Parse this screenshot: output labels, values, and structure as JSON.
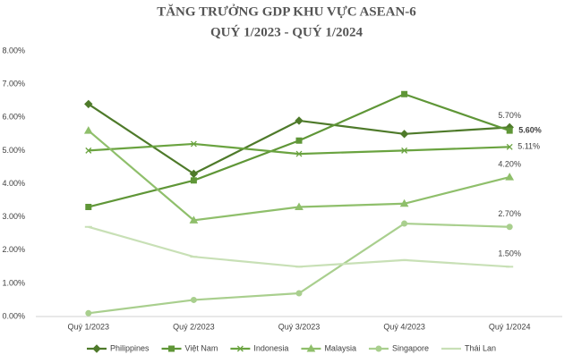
{
  "chart_data": {
    "type": "line",
    "title": "TĂNG TRƯỞNG GDP KHU VỰC ASEAN-6",
    "subtitle": "QUÝ 1/2023 - QUÝ 1/2024",
    "categories": [
      "Quý 1/2023",
      "Quý 2/2023",
      "Quý 3/2023",
      "Quý 4/2023",
      "Quý 1/2024"
    ],
    "ylim": [
      0,
      8
    ],
    "yticks": [
      {
        "value": 0,
        "label": "0.00%"
      },
      {
        "value": 1,
        "label": "1.00%"
      },
      {
        "value": 2,
        "label": "2.00%"
      },
      {
        "value": 3,
        "label": "3.00%"
      },
      {
        "value": 4,
        "label": "4.00%"
      },
      {
        "value": 5,
        "label": "5.00%"
      },
      {
        "value": 6,
        "label": "6.00%"
      },
      {
        "value": 7,
        "label": "7.00%"
      },
      {
        "value": 8,
        "label": "8.00%"
      }
    ],
    "grid": false,
    "legend": "bottom",
    "series": [
      {
        "name": "Philippines",
        "color": "#4e7a2a",
        "marker": "diamond",
        "values": [
          6.4,
          4.3,
          5.9,
          5.5,
          5.7
        ],
        "value_labels": [
          null,
          null,
          null,
          null,
          "5.70%"
        ]
      },
      {
        "name": "Việt Nam",
        "color": "#5f9637",
        "marker": "square",
        "values": [
          3.3,
          4.1,
          5.3,
          6.7,
          5.6
        ],
        "value_labels": [
          null,
          null,
          null,
          null,
          "5.60%"
        ]
      },
      {
        "name": "Indonesia",
        "color": "#6aa340",
        "marker": "x",
        "values": [
          5.0,
          5.2,
          4.9,
          5.0,
          5.11
        ],
        "value_labels": [
          null,
          null,
          null,
          null,
          "5.11%"
        ]
      },
      {
        "name": "Malaysia",
        "color": "#8fbf6b",
        "marker": "triangle",
        "values": [
          5.6,
          2.9,
          3.3,
          3.4,
          4.2
        ],
        "value_labels": [
          null,
          null,
          null,
          null,
          "4.20%"
        ]
      },
      {
        "name": "Singapore",
        "color": "#a9cf8e",
        "marker": "circle",
        "values": [
          0.1,
          0.5,
          0.7,
          2.8,
          2.7
        ],
        "value_labels": [
          null,
          null,
          null,
          null,
          "2.70%"
        ]
      },
      {
        "name": "Thái Lan",
        "color": "#c8e0b6",
        "marker": "dash",
        "values": [
          2.7,
          1.8,
          1.5,
          1.7,
          1.5
        ],
        "value_labels": [
          null,
          null,
          null,
          null,
          "1.50%"
        ]
      }
    ]
  }
}
